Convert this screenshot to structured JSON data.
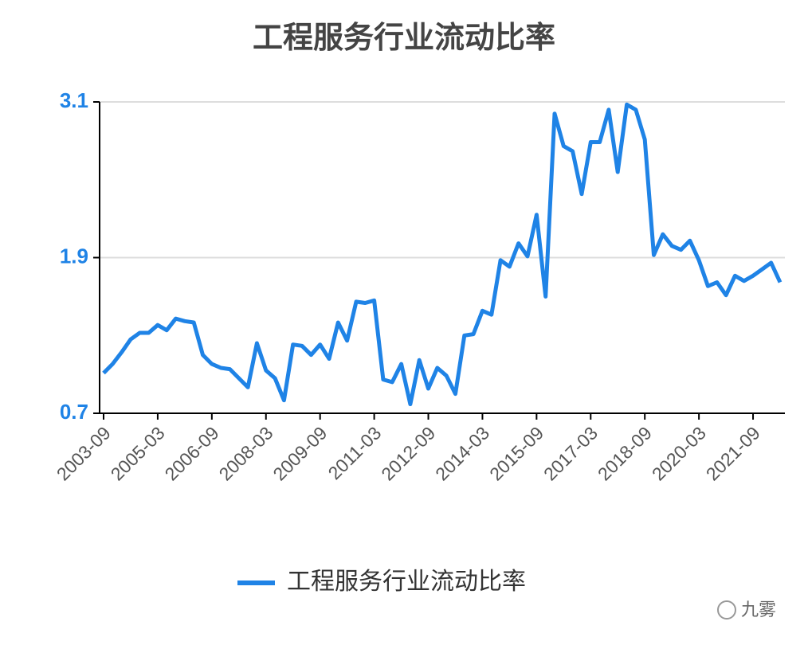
{
  "chart_data": {
    "type": "line",
    "title": "工程服务行业流动比率",
    "categories": [
      "2003-09",
      null,
      null,
      null,
      null,
      null,
      "2005-03",
      null,
      null,
      null,
      null,
      null,
      "2006-09",
      null,
      null,
      null,
      null,
      null,
      "2008-03",
      null,
      null,
      null,
      null,
      null,
      "2009-09",
      null,
      null,
      null,
      null,
      null,
      "2011-03",
      null,
      null,
      null,
      null,
      null,
      "2012-09",
      null,
      null,
      null,
      null,
      null,
      "2014-03",
      null,
      null,
      null,
      null,
      null,
      "2015-09",
      null,
      null,
      null,
      null,
      null,
      "2017-03",
      null,
      null,
      null,
      null,
      null,
      "2018-09",
      null,
      null,
      null,
      null,
      null,
      "2020-03",
      null,
      null,
      null,
      null,
      null,
      "2021-09",
      null,
      null,
      null
    ],
    "series": [
      {
        "name": "工程服务行业流动比率",
        "color": "#1f83e6",
        "values": [
          1.01,
          1.08,
          1.17,
          1.27,
          1.32,
          1.32,
          1.38,
          1.34,
          1.43,
          1.41,
          1.4,
          1.15,
          1.08,
          1.05,
          1.04,
          0.97,
          0.9,
          1.24,
          1.03,
          0.97,
          0.8,
          1.23,
          1.22,
          1.15,
          1.23,
          1.12,
          1.4,
          1.26,
          1.56,
          1.55,
          1.57,
          0.96,
          0.94,
          1.08,
          0.77,
          1.11,
          0.89,
          1.05,
          0.99,
          0.85,
          1.3,
          1.31,
          1.49,
          1.46,
          1.88,
          1.83,
          2.01,
          1.91,
          2.23,
          1.6,
          3.01,
          2.76,
          2.72,
          2.39,
          2.79,
          2.79,
          3.04,
          2.56,
          3.08,
          3.04,
          2.81,
          1.92,
          2.08,
          1.99,
          1.96,
          2.03,
          1.88,
          1.68,
          1.71,
          1.61,
          1.76,
          1.72,
          1.76,
          1.81,
          1.86,
          1.71
        ]
      }
    ],
    "ylim": [
      0.7,
      3.1
    ],
    "yticks": [
      0.7,
      1.9,
      3.1
    ],
    "grid": true,
    "legend": "bottom",
    "watermark": "九雾"
  }
}
